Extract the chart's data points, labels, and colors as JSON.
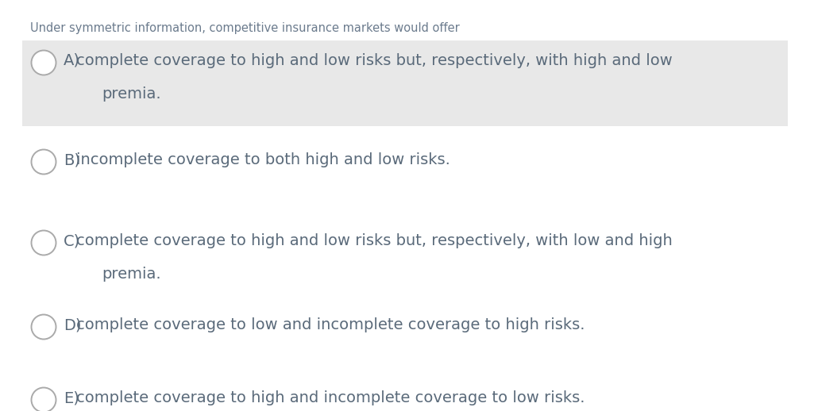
{
  "question": "Under symmetric information, competitive insurance markets would offer",
  "question_color": "#6b7b8d",
  "question_fontsize": 10.5,
  "options": [
    {
      "label": "A)",
      "line1": "complete coverage to high and low risks but, respectively, with high and low",
      "line2": "premia.",
      "highlighted": true
    },
    {
      "label": "B)",
      "line1": "incomplete coverage to both high and low risks.",
      "line2": null,
      "highlighted": false
    },
    {
      "label": "C)",
      "line1": "complete coverage to high and low risks but, respectively, with low and high",
      "line2": "premia.",
      "highlighted": false
    },
    {
      "label": "D)",
      "line1": "complete coverage to low and incomplete coverage to high risks.",
      "line2": null,
      "highlighted": false
    },
    {
      "label": "E)",
      "line1": "complete coverage to high and incomplete coverage to low risks.",
      "line2": null,
      "highlighted": false
    }
  ],
  "highlight_color": "#e8e8e8",
  "option_text_color": "#5a6a7a",
  "option_fontsize": 14.0,
  "circle_edge_color": "#aaaaaa",
  "circle_fill_color": "#ffffff",
  "bg_color": "#ffffff",
  "fig_width": 10.3,
  "fig_height": 5.18,
  "dpi": 100
}
